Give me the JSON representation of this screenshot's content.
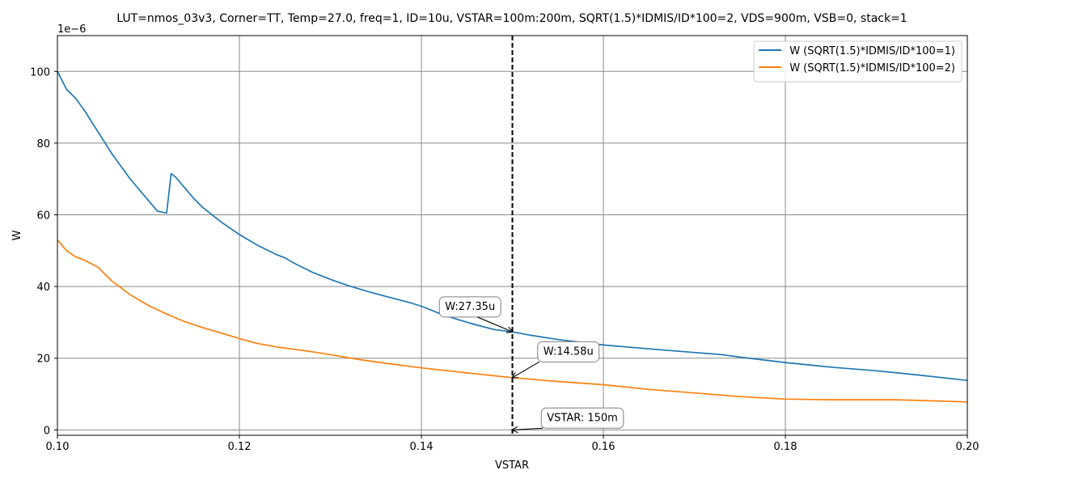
{
  "chart_data": {
    "type": "line",
    "title": "LUT=nmos_03v3, Corner=TT, Temp=27.0, freq=1, ID=10u, VSTAR=100m:200m, SQRT(1.5)*IDMIS/ID*100=2, VDS=900m, VSB=0, stack=1",
    "xlabel": "VSTAR",
    "ylabel": "W",
    "y_offset_text": "1e−6",
    "xlim": [
      0.1,
      0.2
    ],
    "ylim": [
      -1.5,
      110
    ],
    "x_ticks": [
      0.1,
      0.12,
      0.14,
      0.16,
      0.18,
      0.2
    ],
    "x_tick_labels": [
      "0.10",
      "0.12",
      "0.14",
      "0.16",
      "0.18",
      "0.20"
    ],
    "y_ticks": [
      0,
      20,
      40,
      60,
      80,
      100
    ],
    "y_tick_labels": [
      "0",
      "20",
      "40",
      "60",
      "80",
      "100"
    ],
    "grid": true,
    "legend_position": "top-right",
    "series": [
      {
        "name": "W (SQRT(1.5)*IDMIS/ID*100=1)",
        "color": "#1f77b4",
        "x": [
          0.1,
          0.101,
          0.102,
          0.103,
          0.104,
          0.105,
          0.106,
          0.107,
          0.108,
          0.109,
          0.11,
          0.111,
          0.112,
          0.1125,
          0.113,
          0.114,
          0.115,
          0.116,
          0.118,
          0.12,
          0.122,
          0.124,
          0.125,
          0.126,
          0.128,
          0.13,
          0.132,
          0.134,
          0.136,
          0.138,
          0.139,
          0.14,
          0.142,
          0.144,
          0.146,
          0.148,
          0.15,
          0.152,
          0.155,
          0.16,
          0.165,
          0.17,
          0.173,
          0.175,
          0.18,
          0.185,
          0.19,
          0.192,
          0.195,
          0.2
        ],
        "y": [
          100,
          95,
          92.5,
          89,
          85,
          81,
          77,
          73.5,
          70,
          67,
          64,
          61,
          60.5,
          71.5,
          70.5,
          67.5,
          64.5,
          62,
          58,
          54.5,
          51.5,
          49,
          48,
          46.5,
          44,
          42,
          40.2,
          38.7,
          37.3,
          36,
          35.3,
          34.5,
          32.5,
          30.8,
          29.3,
          28,
          27.35,
          26.4,
          25.2,
          23.7,
          22.6,
          21.6,
          21,
          20.3,
          18.8,
          17.5,
          16.5,
          16,
          15.2,
          13.8
        ]
      },
      {
        "name": "W (SQRT(1.5)*IDMIS/ID*100=2)",
        "color": "#ff7f0e",
        "x": [
          0.1,
          0.101,
          0.102,
          0.1025,
          0.103,
          0.104,
          0.1045,
          0.105,
          0.106,
          0.108,
          0.11,
          0.112,
          0.114,
          0.116,
          0.118,
          0.12,
          0.122,
          0.124,
          0.126,
          0.128,
          0.13,
          0.133,
          0.136,
          0.14,
          0.145,
          0.15,
          0.155,
          0.16,
          0.165,
          0.17,
          0.175,
          0.18,
          0.185,
          0.19,
          0.192,
          0.195,
          0.2
        ],
        "y": [
          53,
          50,
          48.3,
          47.8,
          47.3,
          46,
          45.3,
          44,
          41.5,
          37.7,
          34.7,
          32.3,
          30.2,
          28.5,
          27,
          25.5,
          24.1,
          23.2,
          22.5,
          21.8,
          21,
          19.7,
          18.6,
          17.3,
          15.9,
          14.58,
          13.5,
          12.6,
          11.3,
          10.3,
          9.3,
          8.6,
          8.4,
          8.4,
          8.4,
          8.2,
          7.8
        ]
      }
    ],
    "vline": {
      "x": 0.15,
      "color": "#000000"
    },
    "annotations": [
      {
        "text": "W:27.35u",
        "point": [
          0.15,
          27.35
        ],
        "text_at": [
          0.1426,
          33.5
        ]
      },
      {
        "text": "W:14.58u",
        "point": [
          0.15,
          14.58
        ],
        "text_at": [
          0.1534,
          21
        ]
      },
      {
        "text": "VSTAR: 150m",
        "point": [
          0.15,
          0
        ],
        "text_at": [
          0.1538,
          2.5
        ]
      }
    ]
  }
}
